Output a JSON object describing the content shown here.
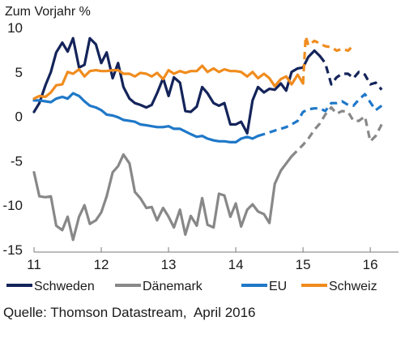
{
  "chart_data": {
    "type": "line",
    "ylabel": "Zum Vorjahr %",
    "source": "Quelle: Thomson Datastream,  April 2016",
    "xlim": [
      2011,
      2016.42
    ],
    "ylim": [
      -15,
      10
    ],
    "xticks": [
      2011,
      2012,
      2013,
      2014,
      2015,
      2016
    ],
    "xtick_labels": [
      "11",
      "12",
      "13",
      "14",
      "15",
      "16"
    ],
    "yticks": [
      -15,
      -10,
      -5,
      0,
      5,
      10
    ],
    "ytick_labels": [
      "-15",
      "-10",
      "-5",
      "0",
      "5",
      "10"
    ],
    "grid": false,
    "legend_position": "bottom",
    "series": [
      {
        "name": "Schweden",
        "color": "#14245a",
        "x": [
          2011.0,
          2011.08,
          2011.17,
          2011.25,
          2011.33,
          2011.42,
          2011.5,
          2011.58,
          2011.67,
          2011.75,
          2011.83,
          2011.92,
          2012.0,
          2012.08,
          2012.17,
          2012.25,
          2012.33,
          2012.42,
          2012.5,
          2012.58,
          2012.67,
          2012.75,
          2012.83,
          2012.92,
          2013.0,
          2013.08,
          2013.17,
          2013.25,
          2013.33,
          2013.42,
          2013.5,
          2013.58,
          2013.67,
          2013.75,
          2013.83,
          2013.92,
          2014.0,
          2014.08,
          2014.17,
          2014.25,
          2014.33,
          2014.42,
          2014.5,
          2014.58,
          2014.67,
          2014.75,
          2014.83,
          2014.92,
          2015.0,
          2015.08,
          2015.17,
          2015.25
        ],
        "y": [
          0.5,
          1.5,
          3.5,
          5.0,
          7.2,
          8.3,
          7.3,
          8.8,
          5.5,
          5.8,
          8.8,
          8.1,
          6.0,
          7.2,
          4.3,
          6.0,
          3.3,
          2.0,
          1.5,
          1.3,
          1.0,
          1.3,
          2.6,
          4.3,
          2.3,
          4.4,
          3.8,
          0.6,
          0.5,
          1.1,
          3.3,
          2.6,
          1.5,
          1.2,
          1.5,
          -0.9,
          -0.9,
          -0.6,
          -1.9,
          1.8,
          3.3,
          2.7,
          3.1,
          3.0,
          3.7,
          2.9,
          5.0,
          5.4,
          5.5,
          6.7,
          7.4,
          6.8
        ]
      },
      {
        "name": "Schweden Prognose",
        "color": "#14245a",
        "x": [
          2015.25,
          2015.33,
          2015.42,
          2015.5,
          2015.58,
          2015.67,
          2015.75,
          2015.83,
          2015.92,
          2016.0,
          2016.08,
          2016.17
        ],
        "y": [
          6.8,
          6.0,
          3.6,
          4.4,
          4.8,
          4.8,
          4.3,
          5.0,
          4.7,
          3.6,
          3.8,
          3.0
        ]
      },
      {
        "name": "Dänemark",
        "color": "#888888",
        "x": [
          2011.0,
          2011.08,
          2011.17,
          2011.25,
          2011.33,
          2011.42,
          2011.5,
          2011.58,
          2011.67,
          2011.75,
          2011.83,
          2011.92,
          2012.0,
          2012.08,
          2012.17,
          2012.25,
          2012.33,
          2012.42,
          2012.5,
          2012.58,
          2012.67,
          2012.75,
          2012.83,
          2012.92,
          2013.0,
          2013.08,
          2013.17,
          2013.25,
          2013.33,
          2013.42,
          2013.5,
          2013.58,
          2013.67,
          2013.75,
          2013.83,
          2013.92,
          2014.0,
          2014.08,
          2014.17,
          2014.25,
          2014.33,
          2014.42,
          2014.5,
          2014.58,
          2014.67,
          2014.75,
          2014.83
        ],
        "y": [
          -6.3,
          -9.0,
          -9.1,
          -9.0,
          -12.3,
          -12.8,
          -11.3,
          -13.9,
          -11.3,
          -10.0,
          -12.1,
          -11.7,
          -10.8,
          -9.0,
          -6.3,
          -5.6,
          -4.3,
          -5.3,
          -8.5,
          -9.2,
          -10.3,
          -10.2,
          -11.7,
          -10.3,
          -11.3,
          -12.5,
          -10.5,
          -13.3,
          -11.2,
          -12.3,
          -9.2,
          -12.2,
          -12.5,
          -8.7,
          -8.9,
          -11.3,
          -9.8,
          -12.4,
          -10.5,
          -9.9,
          -10.7,
          -11.0,
          -12.0,
          -7.6,
          -6.1,
          -5.3,
          -4.5
        ]
      },
      {
        "name": "Dänemark Prognose",
        "color": "#888888",
        "x": [
          2014.83,
          2014.92,
          2015.0,
          2015.08,
          2015.17,
          2015.25,
          2015.33,
          2015.42,
          2015.5,
          2015.58,
          2015.67,
          2015.75,
          2015.83,
          2015.92,
          2016.0,
          2016.08,
          2016.17
        ],
        "y": [
          -4.5,
          -3.8,
          -3.2,
          -2.5,
          -1.5,
          -0.8,
          0.2,
          1.0,
          0.3,
          0.6,
          0.5,
          -0.5,
          -0.5,
          0.0,
          -2.8,
          -2.2,
          -0.9
        ]
      },
      {
        "name": "EU",
        "color": "#1f78c8",
        "x": [
          2011.0,
          2011.08,
          2011.17,
          2011.25,
          2011.33,
          2011.42,
          2011.5,
          2011.58,
          2011.67,
          2011.75,
          2011.83,
          2011.92,
          2012.0,
          2012.08,
          2012.17,
          2012.25,
          2012.33,
          2012.42,
          2012.5,
          2012.58,
          2012.67,
          2012.75,
          2012.83,
          2012.92,
          2013.0,
          2013.08,
          2013.17,
          2013.25,
          2013.33,
          2013.42,
          2013.5,
          2013.58,
          2013.67,
          2013.75,
          2013.83,
          2013.92,
          2014.0,
          2014.08,
          2014.17,
          2014.25,
          2014.33
        ],
        "y": [
          1.8,
          1.8,
          1.7,
          1.6,
          2.0,
          2.2,
          2.0,
          2.6,
          2.3,
          1.7,
          1.2,
          1.0,
          0.7,
          0.2,
          0.1,
          -0.1,
          -0.4,
          -0.5,
          -0.6,
          -0.9,
          -1.0,
          -1.1,
          -1.2,
          -1.2,
          -1.1,
          -1.4,
          -1.4,
          -1.7,
          -2.0,
          -2.3,
          -2.2,
          -2.5,
          -2.7,
          -2.8,
          -2.8,
          -2.9,
          -2.9,
          -2.5,
          -2.3,
          -2.5,
          -2.2
        ]
      },
      {
        "name": "EU Prognose",
        "color": "#1f78c8",
        "x": [
          2014.33,
          2014.42,
          2014.5,
          2014.58,
          2014.67,
          2014.75,
          2014.83,
          2014.92,
          2015.0,
          2015.08,
          2015.17,
          2015.25,
          2015.33,
          2015.42,
          2015.5,
          2015.58,
          2015.67,
          2015.75,
          2015.83,
          2015.92,
          2016.0,
          2016.08,
          2016.17
        ],
        "y": [
          -2.2,
          -2.0,
          -1.8,
          -1.6,
          -1.4,
          -1.2,
          -0.9,
          -0.5,
          0.5,
          0.8,
          0.9,
          0.9,
          0.6,
          1.5,
          1.5,
          1.7,
          1.3,
          1.2,
          1.9,
          2.5,
          1.6,
          0.7,
          1.2
        ]
      },
      {
        "name": "Schweiz",
        "color": "#f08c1e",
        "x": [
          2011.0,
          2011.08,
          2011.17,
          2011.25,
          2011.33,
          2011.42,
          2011.5,
          2011.58,
          2011.67,
          2011.75,
          2011.83,
          2011.92,
          2012.0,
          2012.08,
          2012.17,
          2012.25,
          2012.33,
          2012.42,
          2012.5,
          2012.58,
          2012.67,
          2012.75,
          2012.83,
          2012.92,
          2013.0,
          2013.08,
          2013.17,
          2013.25,
          2013.33,
          2013.42,
          2013.5,
          2013.58,
          2013.67,
          2013.75,
          2013.83,
          2013.92,
          2014.0,
          2014.08,
          2014.17,
          2014.25,
          2014.33,
          2014.42,
          2014.5,
          2014.58,
          2014.67,
          2014.75,
          2014.83,
          2014.92,
          2015.0
        ],
        "y": [
          2.0,
          2.3,
          2.2,
          2.7,
          3.5,
          3.6,
          5.0,
          4.8,
          5.3,
          4.5,
          5.1,
          5.2,
          5.1,
          5.1,
          5.2,
          5.2,
          4.8,
          4.8,
          4.5,
          4.9,
          4.8,
          4.5,
          4.9,
          4.2,
          5.2,
          4.8,
          5.1,
          4.9,
          5.1,
          5.1,
          5.7,
          5.0,
          5.4,
          5.0,
          5.3,
          5.1,
          5.1,
          5.0,
          4.5,
          5.0,
          4.3,
          4.8,
          4.3,
          3.4,
          4.2,
          4.5,
          3.6,
          4.7,
          3.7
        ]
      },
      {
        "name": "Schweiz Prognose",
        "color": "#f08c1e",
        "x": [
          2015.0,
          2015.04,
          2015.08,
          2015.17,
          2015.25,
          2015.33,
          2015.42,
          2015.5,
          2015.58,
          2015.67,
          2015.75
        ],
        "y": [
          3.7,
          9.0,
          8.0,
          8.5,
          8.2,
          7.9,
          7.8,
          7.4,
          7.6,
          7.4,
          8.0
        ]
      }
    ],
    "legend": [
      {
        "label": "Schweden",
        "color": "#14245a"
      },
      {
        "label": "Dänemark",
        "color": "#888888"
      },
      {
        "label": "EU",
        "color": "#1f78c8"
      },
      {
        "label": "Schweiz",
        "color": "#f08c1e"
      }
    ]
  }
}
